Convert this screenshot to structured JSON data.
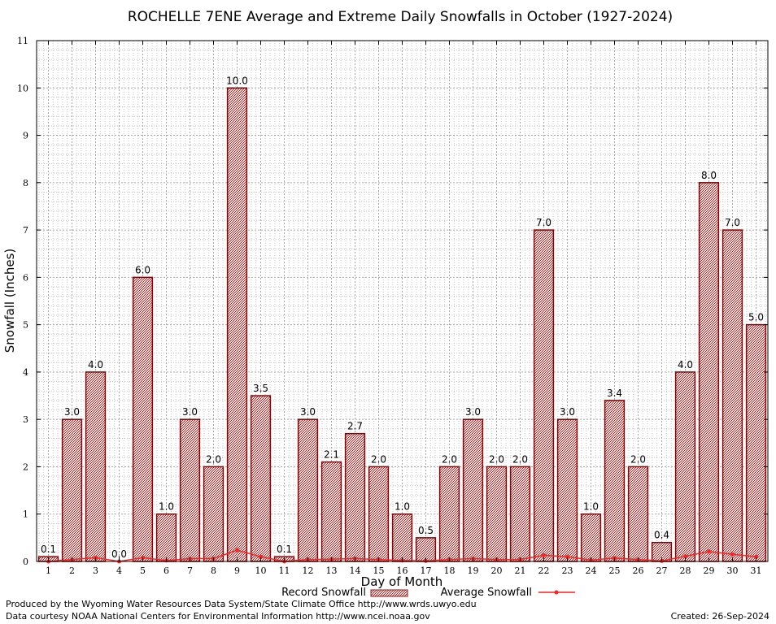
{
  "chart_data": {
    "type": "bar",
    "title": "ROCHELLE 7ENE Average and Extreme Daily Snowfalls in October (1927-2024)",
    "xlabel": "Day of Month",
    "ylabel": "Snowfall (Inches)",
    "ylim": [
      0,
      11
    ],
    "yticks": [
      0,
      1,
      2,
      3,
      4,
      5,
      6,
      7,
      8,
      9,
      10,
      11
    ],
    "grid": true,
    "legend_position": "bottom",
    "categories": [
      "1",
      "2",
      "3",
      "4",
      "5",
      "6",
      "7",
      "8",
      "9",
      "10",
      "11",
      "12",
      "13",
      "14",
      "15",
      "16",
      "17",
      "18",
      "19",
      "20",
      "21",
      "22",
      "23",
      "24",
      "25",
      "26",
      "27",
      "28",
      "29",
      "30",
      "31"
    ],
    "series": [
      {
        "name": "Record Snowfall",
        "type": "bar",
        "color": "#b22222",
        "values": [
          0.1,
          3.0,
          4.0,
          0.0,
          6.0,
          1.0,
          3.0,
          2.0,
          10.0,
          3.5,
          0.1,
          3.0,
          2.1,
          2.7,
          2.0,
          1.0,
          0.5,
          2.0,
          3.0,
          2.0,
          2.0,
          7.0,
          3.0,
          1.0,
          3.4,
          2.0,
          0.4,
          4.0,
          8.0,
          7.0,
          5.0
        ],
        "labels": [
          "0.1",
          "3.0",
          "4.0",
          "0.0",
          "6.0",
          "1.0",
          "3.0",
          "2.0",
          "10.0",
          "3.5",
          "0.1",
          "3.0",
          "2.1",
          "2.7",
          "2.0",
          "1.0",
          "0.5",
          "2.0",
          "3.0",
          "2.0",
          "2.0",
          "7.0",
          "3.0",
          "1.0",
          "3.4",
          "2.0",
          "0.4",
          "4.0",
          "8.0",
          "7.0",
          "5.0"
        ]
      },
      {
        "name": "Average Snowfall",
        "type": "line",
        "color": "#ff2020",
        "values": [
          0.0,
          0.04,
          0.08,
          0.0,
          0.08,
          0.02,
          0.06,
          0.06,
          0.24,
          0.1,
          0.0,
          0.04,
          0.05,
          0.06,
          0.04,
          0.02,
          0.01,
          0.04,
          0.06,
          0.04,
          0.04,
          0.13,
          0.1,
          0.03,
          0.07,
          0.04,
          0.01,
          0.11,
          0.21,
          0.15,
          0.1
        ]
      }
    ]
  },
  "footer": {
    "produced_by": "Produced by the Wyoming Water Resources Data System/State Climate Office http://www.wrds.uwyo.edu",
    "data_courtesy": "Data courtesy NOAA National Centers for Environmental Information http://www.ncei.noaa.gov",
    "created": "Created:  26-Sep-2024"
  }
}
